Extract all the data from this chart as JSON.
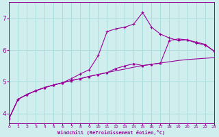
{
  "xlabel": "Windchill (Refroidissement éolien,°C)",
  "bg_color": "#d0eeee",
  "grid_color": "#aadddd",
  "line_color": "#990099",
  "x_ticks": [
    0,
    1,
    2,
    3,
    4,
    5,
    6,
    7,
    8,
    9,
    10,
    11,
    12,
    13,
    14,
    15,
    16,
    17,
    18,
    19,
    20,
    21,
    22,
    23
  ],
  "y_ticks": [
    4,
    5,
    6,
    7
  ],
  "xlim": [
    0,
    23
  ],
  "ylim": [
    3.7,
    7.5
  ],
  "curve1_x": [
    0,
    1,
    2,
    3,
    4,
    5,
    6,
    7,
    8,
    9,
    10,
    11,
    12,
    13,
    14,
    15,
    16,
    17,
    18,
    19,
    20,
    21,
    22,
    23
  ],
  "curve1_y": [
    3.85,
    4.45,
    4.6,
    4.72,
    4.82,
    4.9,
    4.97,
    5.04,
    5.1,
    5.17,
    5.23,
    5.29,
    5.35,
    5.4,
    5.46,
    5.51,
    5.55,
    5.59,
    5.63,
    5.67,
    5.7,
    5.72,
    5.74,
    5.76
  ],
  "curve2_x": [
    0,
    1,
    2,
    3,
    4,
    5,
    6,
    7,
    8,
    9,
    10,
    11,
    12,
    13,
    14,
    15,
    16,
    17,
    18,
    19,
    20,
    21,
    22,
    23
  ],
  "curve2_y": [
    3.85,
    4.45,
    4.6,
    4.72,
    4.82,
    4.9,
    4.97,
    5.1,
    5.25,
    5.38,
    5.82,
    6.58,
    6.67,
    6.72,
    6.82,
    7.18,
    6.72,
    6.5,
    6.38,
    6.3,
    6.32,
    6.22,
    6.16,
    5.97
  ],
  "curve3_x": [
    0,
    1,
    2,
    3,
    4,
    5,
    6,
    7,
    8,
    9,
    10,
    11,
    12,
    13,
    14,
    15,
    16,
    17,
    18,
    19,
    20,
    21,
    22,
    23
  ],
  "curve3_y": [
    3.85,
    4.45,
    4.6,
    4.72,
    4.82,
    4.9,
    4.97,
    5.04,
    5.1,
    5.17,
    5.23,
    5.29,
    5.42,
    5.5,
    5.57,
    5.51,
    5.55,
    5.59,
    6.3,
    6.35,
    6.32,
    6.25,
    6.18,
    5.97
  ]
}
